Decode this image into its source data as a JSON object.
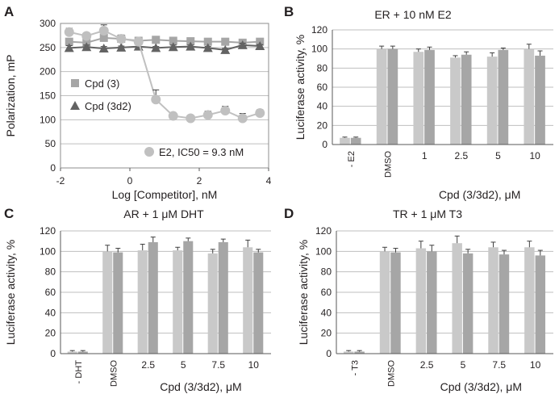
{
  "chart_data": [
    {
      "id": "A",
      "type": "scatter",
      "panel_letter": "A",
      "title": "",
      "xlabel": "Log [Competitor], nM",
      "ylabel": "Polarization, mP",
      "xlim": [
        -2,
        4
      ],
      "ylim": [
        0,
        300
      ],
      "x_ticks": [
        -2,
        0,
        2,
        4
      ],
      "y_ticks": [
        0,
        50,
        100,
        150,
        200,
        250,
        300
      ],
      "x_tick_labels": [
        "-2",
        "0",
        "2",
        "4"
      ],
      "y_tick_labels": [
        "0",
        "50",
        "100",
        "150",
        "200",
        "250",
        "300"
      ],
      "grid": true,
      "series": [
        {
          "name": "Cpd (3)",
          "marker": "square",
          "color": "#a6a6a6",
          "x": [
            -1.75,
            -1.25,
            -0.75,
            -0.25,
            0.25,
            0.75,
            1.25,
            1.75,
            2.25,
            2.75,
            3.25,
            3.75
          ],
          "y": [
            262,
            260,
            270,
            268,
            264,
            266,
            264,
            263,
            262,
            262,
            260,
            262
          ],
          "err": [
            6,
            5,
            4,
            3,
            4,
            4,
            4,
            3,
            3,
            3,
            3,
            3
          ]
        },
        {
          "name": "Cpd (3d2)",
          "marker": "triangle",
          "color": "#636363",
          "x": [
            -1.75,
            -1.25,
            -0.75,
            -0.25,
            0.25,
            0.75,
            1.25,
            1.75,
            2.25,
            2.75,
            3.25,
            3.75
          ],
          "y": [
            249,
            251,
            248,
            250,
            252,
            249,
            251,
            252,
            249,
            245,
            255,
            253
          ],
          "err": [
            5,
            4,
            4,
            3,
            4,
            3,
            4,
            3,
            3,
            3,
            4,
            3
          ]
        },
        {
          "name": "E2, IC50 = 9.3 nM",
          "marker": "circle",
          "color": "#c0c0c0",
          "x": [
            -1.75,
            -1.25,
            -0.75,
            -0.25,
            0.25,
            0.75,
            1.25,
            1.75,
            2.25,
            2.75,
            3.25,
            3.75
          ],
          "y": [
            282,
            274,
            285,
            268,
            262,
            142,
            108,
            103,
            110,
            119,
            103,
            114
          ],
          "err": [
            8,
            6,
            12,
            8,
            6,
            20,
            6,
            5,
            8,
            9,
            10,
            7
          ]
        }
      ],
      "legend": [
        {
          "label": "Cpd (3)",
          "marker": "square",
          "color": "#a6a6a6"
        },
        {
          "label": "Cpd (3d2)",
          "marker": "triangle",
          "color": "#636363"
        },
        {
          "label": "E2, IC50 = 9.3 nM",
          "marker": "circle",
          "color": "#c0c0c0"
        }
      ]
    },
    {
      "id": "B",
      "type": "bar",
      "panel_letter": "B",
      "title": "ER + 10 nM E2",
      "xlabel": "Cpd (3/3d2), μM",
      "ylabel": "Luciferase activity, %",
      "ylim": [
        0,
        120
      ],
      "y_ticks": [
        0,
        20,
        40,
        60,
        80,
        100,
        120
      ],
      "y_tick_labels": [
        "0",
        "20",
        "40",
        "60",
        "80",
        "100",
        "120"
      ],
      "categories": [
        "- E2",
        "DMSO",
        "1",
        "2.5",
        "5",
        "10"
      ],
      "category_style": [
        "rotated",
        "rotated",
        "normal",
        "normal",
        "normal",
        "normal"
      ],
      "series": [
        {
          "name": "Cpd (3)",
          "color": "#c9c9c9",
          "values": [
            7,
            100,
            97,
            91,
            92,
            100
          ],
          "err": [
            0.8,
            3,
            3,
            2,
            4,
            5
          ]
        },
        {
          "name": "Cpd (3d2)",
          "color": "#a6a6a6",
          "values": [
            7,
            100,
            99,
            94,
            99,
            93
          ],
          "err": [
            0.8,
            3,
            3,
            3,
            2,
            5
          ]
        }
      ]
    },
    {
      "id": "C",
      "type": "bar",
      "panel_letter": "C",
      "title": "AR + 1 μM DHT",
      "xlabel": "Cpd (3/3d2), μM",
      "ylabel": "Luciferase activity, %",
      "ylim": [
        0,
        120
      ],
      "y_ticks": [
        0,
        20,
        40,
        60,
        80,
        100,
        120
      ],
      "y_tick_labels": [
        "0",
        "20",
        "40",
        "60",
        "80",
        "100",
        "120"
      ],
      "categories": [
        "- DHT",
        "DMSO",
        "2.5",
        "5",
        "7.5",
        "10"
      ],
      "category_style": [
        "rotated",
        "rotated",
        "normal",
        "normal",
        "normal",
        "normal"
      ],
      "series": [
        {
          "name": "Cpd (3)",
          "color": "#c9c9c9",
          "values": [
            2,
            100,
            101,
            101,
            98,
            104
          ],
          "err": [
            1,
            6,
            6,
            3,
            4,
            7
          ]
        },
        {
          "name": "Cpd (3d2)",
          "color": "#a6a6a6",
          "values": [
            2,
            99,
            109,
            110,
            109,
            99
          ],
          "err": [
            1,
            4,
            5,
            3,
            3,
            3
          ]
        }
      ]
    },
    {
      "id": "D",
      "type": "bar",
      "panel_letter": "D",
      "title": "TR + 1 μM T3",
      "xlabel": "Cpd (3/3d2), μM",
      "ylabel": "Luciferase activity, %",
      "ylim": [
        0,
        120
      ],
      "y_ticks": [
        0,
        20,
        40,
        60,
        80,
        100,
        120
      ],
      "y_tick_labels": [
        "0",
        "20",
        "40",
        "60",
        "80",
        "100",
        "120"
      ],
      "categories": [
        "- T3",
        "DMSO",
        "2.5",
        "5",
        "7.5",
        "10"
      ],
      "category_style": [
        "rotated",
        "rotated",
        "normal",
        "normal",
        "normal",
        "normal"
      ],
      "series": [
        {
          "name": "Cpd (3)",
          "color": "#c9c9c9",
          "values": [
            2,
            100,
            103,
            108,
            104,
            104
          ],
          "err": [
            1,
            4,
            7,
            7,
            5,
            6
          ]
        },
        {
          "name": "Cpd (3d2)",
          "color": "#a6a6a6",
          "values": [
            2,
            99,
            100,
            98,
            97,
            96
          ],
          "err": [
            1,
            4,
            6,
            4,
            4,
            5
          ]
        }
      ]
    }
  ]
}
